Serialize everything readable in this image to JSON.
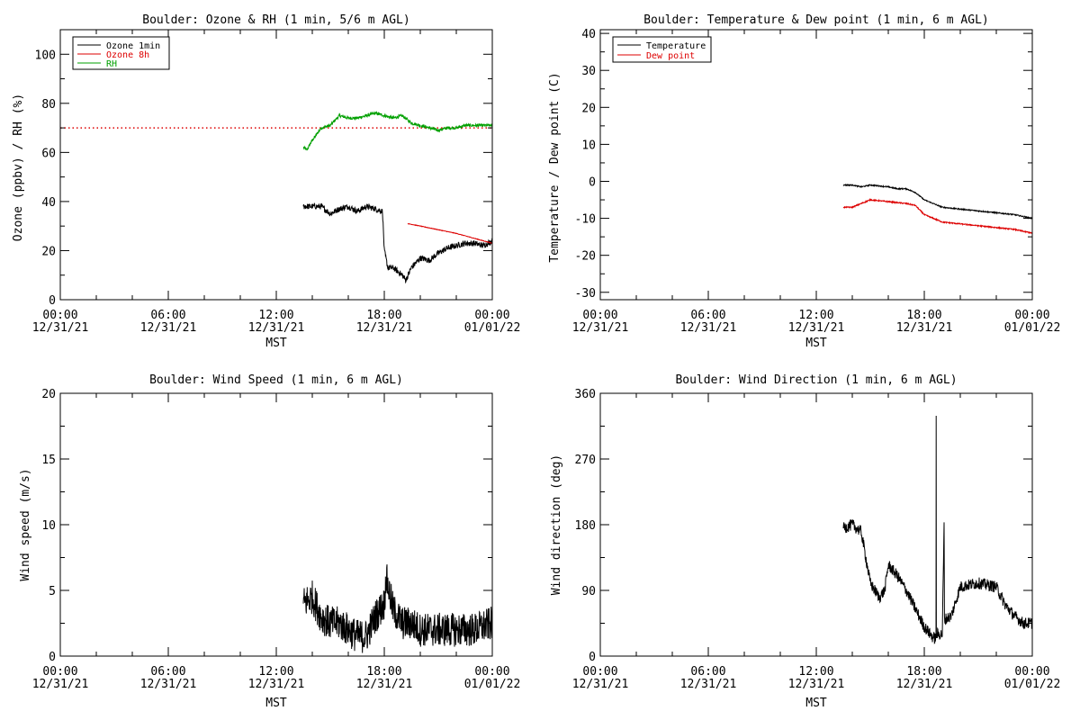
{
  "colors": {
    "black": "#000000",
    "red": "#dd0000",
    "green": "#00a000"
  },
  "chart_data": [
    {
      "type": "line",
      "title": "Boulder: Ozone & RH (1 min, 5/6 m AGL)",
      "ylabel": "Ozone (ppbv) / RH (%)",
      "xlabel": "MST",
      "xlim": [
        0,
        24
      ],
      "ylim": [
        0,
        110
      ],
      "xticks": [
        {
          "h": 0,
          "l1": "00:00",
          "l2": "12/31/21"
        },
        {
          "h": 6,
          "l1": "06:00",
          "l2": "12/31/21"
        },
        {
          "h": 12,
          "l1": "12:00",
          "l2": "12/31/21"
        },
        {
          "h": 18,
          "l1": "18:00",
          "l2": "12/31/21"
        },
        {
          "h": 24,
          "l1": "00:00",
          "l2": "01/01/22"
        }
      ],
      "yticks": [
        0,
        20,
        40,
        60,
        80,
        100
      ],
      "reference_line": {
        "y": 70,
        "color": "red",
        "style": "dotted"
      },
      "legend": [
        {
          "label": "Ozone 1min",
          "color": "black"
        },
        {
          "label": "Ozone 8h",
          "color": "red"
        },
        {
          "label": "RH",
          "color": "green"
        }
      ],
      "series": [
        {
          "name": "RH",
          "color": "green",
          "noise": 0.6,
          "points": [
            [
              13.5,
              62
            ],
            [
              13.7,
              61
            ],
            [
              14.0,
              65
            ],
            [
              14.5,
              70
            ],
            [
              15.0,
              71
            ],
            [
              15.5,
              75
            ],
            [
              16.0,
              74
            ],
            [
              16.5,
              74
            ],
            [
              17.0,
              75
            ],
            [
              17.5,
              76
            ],
            [
              18.0,
              75
            ],
            [
              18.5,
              74
            ],
            [
              19.0,
              75
            ],
            [
              19.5,
              72
            ],
            [
              20.0,
              71
            ],
            [
              20.5,
              70
            ],
            [
              21.0,
              69
            ],
            [
              21.5,
              70
            ],
            [
              22.0,
              70
            ],
            [
              22.5,
              71
            ],
            [
              23.0,
              71
            ],
            [
              23.5,
              71
            ],
            [
              24.0,
              71
            ]
          ]
        },
        {
          "name": "Ozone 1min",
          "color": "black",
          "noise": 1.2,
          "points": [
            [
              13.5,
              38
            ],
            [
              14.0,
              38
            ],
            [
              14.5,
              38
            ],
            [
              15.0,
              35
            ],
            [
              15.5,
              37
            ],
            [
              16.0,
              38
            ],
            [
              16.5,
              36
            ],
            [
              17.0,
              38
            ],
            [
              17.5,
              37
            ],
            [
              17.9,
              36
            ],
            [
              18.0,
              20
            ],
            [
              18.2,
              13
            ],
            [
              18.5,
              13
            ],
            [
              19.0,
              10
            ],
            [
              19.2,
              8
            ],
            [
              19.5,
              13
            ],
            [
              20.0,
              17
            ],
            [
              20.5,
              16
            ],
            [
              21.0,
              19
            ],
            [
              21.5,
              21
            ],
            [
              22.0,
              22
            ],
            [
              22.5,
              23
            ],
            [
              23.0,
              23
            ],
            [
              23.5,
              22
            ],
            [
              24.0,
              24
            ]
          ]
        },
        {
          "name": "Ozone 8h",
          "color": "red",
          "noise": 0.1,
          "points": [
            [
              19.3,
              31
            ],
            [
              20.0,
              30
            ],
            [
              21.0,
              28.5
            ],
            [
              22.0,
              27
            ],
            [
              23.0,
              25
            ],
            [
              24.0,
              23
            ]
          ]
        }
      ]
    },
    {
      "type": "line",
      "title": "Boulder: Temperature & Dew point (1 min, 6 m AGL)",
      "ylabel": "Temperature / Dew point (C)",
      "xlabel": "",
      "xlim": [
        0,
        24
      ],
      "ylim": [
        -32,
        41
      ],
      "xticks": [
        {
          "h": 0,
          "l1": "00:00",
          "l2": "12/31/21"
        },
        {
          "h": 6,
          "l1": "06:00",
          "l2": "12/31/21"
        },
        {
          "h": 12,
          "l1": "12:00",
          "l2": "12/31/21"
        },
        {
          "h": 18,
          "l1": "18:00",
          "l2": "12/31/21"
        },
        {
          "h": 24,
          "l1": "00:00",
          "l2": "01/01/22"
        }
      ],
      "yticks": [
        -30,
        -20,
        -10,
        0,
        10,
        20,
        30,
        40
      ],
      "legend": [
        {
          "label": "Temperature",
          "color": "black"
        },
        {
          "label": "Dew point",
          "color": "red"
        }
      ],
      "series": [
        {
          "name": "Temperature",
          "color": "black",
          "noise": 0.15,
          "points": [
            [
              13.5,
              -1
            ],
            [
              14.0,
              -1
            ],
            [
              14.5,
              -1.5
            ],
            [
              15.0,
              -1
            ],
            [
              16.0,
              -1.5
            ],
            [
              16.5,
              -2
            ],
            [
              17.0,
              -2
            ],
            [
              17.5,
              -3
            ],
            [
              18.0,
              -5
            ],
            [
              18.5,
              -6
            ],
            [
              19.0,
              -7
            ],
            [
              20.0,
              -7.5
            ],
            [
              21.0,
              -8
            ],
            [
              22.0,
              -8.5
            ],
            [
              23.0,
              -9
            ],
            [
              24.0,
              -10
            ]
          ]
        },
        {
          "name": "Dew point",
          "color": "red",
          "noise": 0.15,
          "points": [
            [
              13.5,
              -7
            ],
            [
              14.0,
              -7
            ],
            [
              14.5,
              -6
            ],
            [
              15.0,
              -5
            ],
            [
              16.0,
              -5.5
            ],
            [
              17.0,
              -6
            ],
            [
              17.5,
              -6.5
            ],
            [
              18.0,
              -9
            ],
            [
              18.5,
              -10
            ],
            [
              19.0,
              -11
            ],
            [
              20.0,
              -11.5
            ],
            [
              21.0,
              -12
            ],
            [
              22.0,
              -12.5
            ],
            [
              23.0,
              -13
            ],
            [
              24.0,
              -14
            ]
          ]
        }
      ]
    },
    {
      "type": "line",
      "title": "Boulder: Wind Speed (1 min, 6 m AGL)",
      "ylabel": "Wind speed (m/s)",
      "xlabel": "MST",
      "xlim": [
        0,
        24
      ],
      "ylim": [
        0,
        20
      ],
      "xticks": [
        {
          "h": 0,
          "l1": "00:00",
          "l2": "12/31/21"
        },
        {
          "h": 6,
          "l1": "06:00",
          "l2": "12/31/21"
        },
        {
          "h": 12,
          "l1": "12:00",
          "l2": "12/31/21"
        },
        {
          "h": 18,
          "l1": "18:00",
          "l2": "12/31/21"
        },
        {
          "h": 24,
          "l1": "00:00",
          "l2": "01/01/22"
        }
      ],
      "yticks": [
        0,
        5,
        10,
        15,
        20
      ],
      "series": [
        {
          "name": "Wind speed",
          "color": "black",
          "noise": 1.3,
          "points": [
            [
              13.5,
              4
            ],
            [
              14.0,
              4.5
            ],
            [
              14.5,
              3
            ],
            [
              15.0,
              2.5
            ],
            [
              15.5,
              2.5
            ],
            [
              16.0,
              2
            ],
            [
              16.5,
              1.5
            ],
            [
              17.0,
              1.5
            ],
            [
              17.5,
              3
            ],
            [
              18.0,
              4
            ],
            [
              18.1,
              6
            ],
            [
              18.5,
              3.5
            ],
            [
              19.0,
              2.5
            ],
            [
              19.5,
              2.5
            ],
            [
              20.0,
              2
            ],
            [
              21.0,
              2
            ],
            [
              22.0,
              2
            ],
            [
              23.0,
              2
            ],
            [
              24.0,
              2.5
            ]
          ]
        }
      ]
    },
    {
      "type": "line",
      "title": "Boulder: Wind Direction (1 min, 6 m AGL)",
      "ylabel": "Wind direction (deg)",
      "xlabel": "MST",
      "xlim": [
        0,
        24
      ],
      "ylim": [
        0,
        360
      ],
      "xticks": [
        {
          "h": 0,
          "l1": "00:00",
          "l2": "12/31/21"
        },
        {
          "h": 6,
          "l1": "06:00",
          "l2": "12/31/21"
        },
        {
          "h": 12,
          "l1": "12:00",
          "l2": "12/31/21"
        },
        {
          "h": 18,
          "l1": "18:00",
          "l2": "12/31/21"
        },
        {
          "h": 24,
          "l1": "00:00",
          "l2": "01/01/22"
        }
      ],
      "yticks": [
        0,
        90,
        180,
        270,
        360
      ],
      "series": [
        {
          "name": "Wind direction",
          "color": "black",
          "noise": 8,
          "points": [
            [
              13.5,
              175
            ],
            [
              14.0,
              180
            ],
            [
              14.5,
              170
            ],
            [
              15.0,
              100
            ],
            [
              15.5,
              80
            ],
            [
              15.8,
              90
            ],
            [
              16.0,
              125
            ],
            [
              16.5,
              110
            ],
            [
              17.0,
              90
            ],
            [
              17.5,
              65
            ],
            [
              18.0,
              40
            ],
            [
              18.5,
              25
            ],
            [
              18.65,
              25
            ],
            [
              18.66,
              325
            ],
            [
              18.67,
              30
            ],
            [
              19.0,
              30
            ],
            [
              19.1,
              180
            ],
            [
              19.12,
              50
            ],
            [
              19.5,
              55
            ],
            [
              20.0,
              95
            ],
            [
              21.0,
              100
            ],
            [
              22.0,
              95
            ],
            [
              22.5,
              70
            ],
            [
              23.0,
              55
            ],
            [
              23.5,
              45
            ],
            [
              24.0,
              45
            ]
          ]
        }
      ]
    }
  ]
}
